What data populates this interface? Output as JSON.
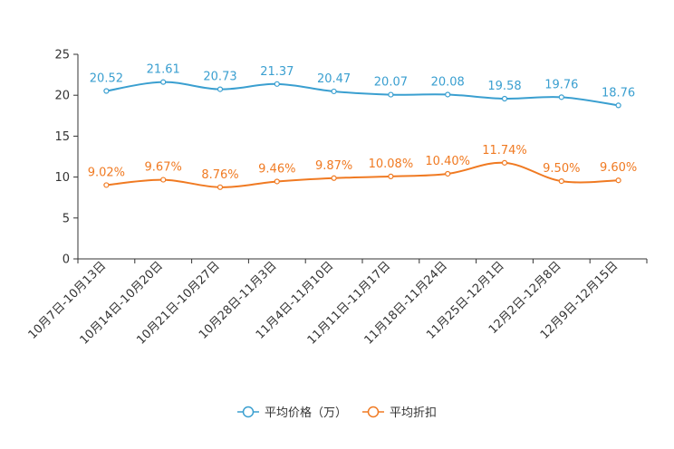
{
  "chart_data": {
    "type": "line",
    "categories": [
      "10月7日-10月13日",
      "10月14日-10月20日",
      "10月21日-10月27日",
      "10月28日-11月3日",
      "11月4日-11月10日",
      "11月11日-11月17日",
      "11月18日-11月24日",
      "11月25日-12月1日",
      "12月2日-12月8日",
      "12月9日-12月15日"
    ],
    "ylim": [
      0,
      25
    ],
    "yticks": [
      0,
      5,
      10,
      15,
      20,
      25
    ],
    "series": [
      {
        "name": "平均价格（万）",
        "color": "#3a9fd0",
        "values": [
          20.52,
          21.61,
          20.73,
          21.37,
          20.47,
          20.07,
          20.08,
          19.58,
          19.76,
          18.76
        ],
        "labels": [
          "20.52",
          "21.61",
          "20.73",
          "21.37",
          "20.47",
          "20.07",
          "20.08",
          "19.58",
          "19.76",
          "18.76"
        ]
      },
      {
        "name": "平均折扣",
        "color": "#f07a22",
        "values": [
          9.02,
          9.67,
          8.76,
          9.46,
          9.87,
          10.08,
          10.4,
          11.74,
          9.5,
          9.6
        ],
        "labels": [
          "9.02%",
          "9.67%",
          "8.76%",
          "9.46%",
          "9.87%",
          "10.08%",
          "10.40%",
          "11.74%",
          "9.50%",
          "9.60%"
        ]
      }
    ]
  }
}
